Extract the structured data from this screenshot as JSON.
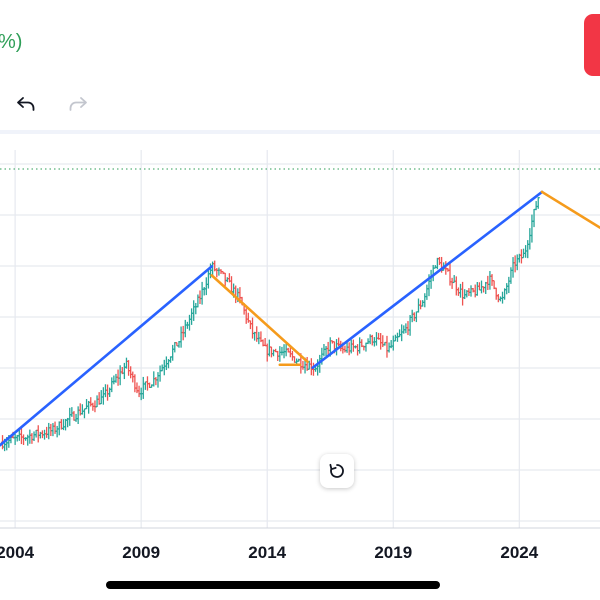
{
  "header": {
    "change_fragment": "%)",
    "change_color": "#2e9e57",
    "action_color": "#f23645"
  },
  "toolbar": {
    "undo_icon": "undo-icon",
    "redo_icon": "redo-icon",
    "redo_enabled": false
  },
  "chart_data": {
    "type": "bar",
    "style": "ohlc",
    "title": "",
    "xlabel": "",
    "ylabel": "",
    "x_ticks": [
      "2004",
      "2009",
      "2014",
      "2019",
      "2024"
    ],
    "x_range": [
      2003.4,
      2027.2
    ],
    "y_range": [
      0,
      100
    ],
    "y_scale": "relative (no price labels visible)",
    "grid": true,
    "price_line": "dotted",
    "up_color": "#26a69a",
    "down_color": "#ef5350",
    "price_path": [
      [
        2003.5,
        12
      ],
      [
        2004.5,
        14
      ],
      [
        2005.5,
        16
      ],
      [
        2006.5,
        22
      ],
      [
        2007.5,
        27
      ],
      [
        2008.4,
        38
      ],
      [
        2008.9,
        29
      ],
      [
        2009.5,
        33
      ],
      [
        2010.5,
        46
      ],
      [
        2011.3,
        60
      ],
      [
        2011.8,
        71
      ],
      [
        2012.3,
        67
      ],
      [
        2012.9,
        60
      ],
      [
        2013.4,
        49
      ],
      [
        2013.9,
        43
      ],
      [
        2014.7,
        42
      ],
      [
        2015.3,
        39
      ],
      [
        2015.9,
        37
      ],
      [
        2016.5,
        45
      ],
      [
        2017.0,
        43
      ],
      [
        2017.6,
        44
      ],
      [
        2018.2,
        47
      ],
      [
        2018.8,
        43
      ],
      [
        2019.5,
        50
      ],
      [
        2020.2,
        60
      ],
      [
        2020.7,
        73
      ],
      [
        2021.1,
        69
      ],
      [
        2021.8,
        61
      ],
      [
        2022.4,
        63
      ],
      [
        2022.8,
        67
      ],
      [
        2023.3,
        59
      ],
      [
        2023.8,
        72
      ],
      [
        2024.2,
        75
      ],
      [
        2024.5,
        86
      ],
      [
        2024.8,
        96
      ]
    ],
    "drawings": [
      {
        "tool": "trend-line",
        "color": "#2962ff",
        "from": [
          2003.4,
          11
        ],
        "to": [
          2011.8,
          71
        ]
      },
      {
        "tool": "trend-line",
        "color": "#f59b1c",
        "from": [
          2011.8,
          68
        ],
        "to": [
          2015.6,
          39
        ]
      },
      {
        "tool": "horizontal-segment",
        "color": "#f59b1c",
        "from": [
          2014.5,
          38
        ],
        "to": [
          2015.3,
          38
        ]
      },
      {
        "tool": "trend-line",
        "color": "#2962ff",
        "from": [
          2015.8,
          37
        ],
        "to": [
          2024.9,
          96
        ]
      },
      {
        "tool": "trend-line",
        "color": "#f59b1c",
        "from": [
          2024.9,
          96
        ],
        "to": [
          2027.2,
          84
        ]
      }
    ]
  }
}
